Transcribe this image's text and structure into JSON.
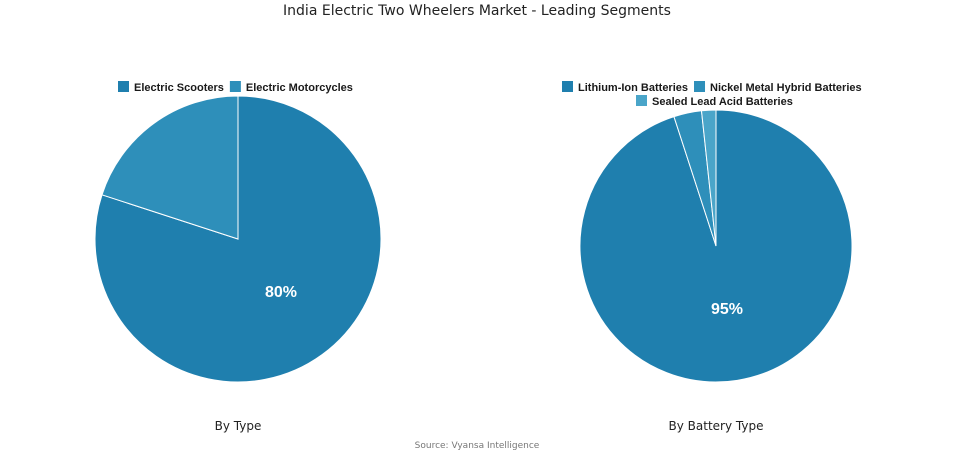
{
  "title": "India Electric Two Wheelers Market - Leading Segments",
  "source": "Source: Vyansa Intelligence",
  "chart_data": [
    {
      "type": "pie",
      "caption": "By Type",
      "legend_placement": "top",
      "slices": [
        {
          "label": "Electric Scooters",
          "value": 80,
          "color": "#1f7fae",
          "data_label": "80%"
        },
        {
          "label": "Electric Motorcycles",
          "value": 20,
          "color": "#2e8fba",
          "data_label": ""
        }
      ]
    },
    {
      "type": "pie",
      "caption": "By Battery Type",
      "legend_placement": "top",
      "slices": [
        {
          "label": "Lithium-Ion Batteries",
          "value": 95,
          "color": "#1f7fae",
          "data_label": "95%"
        },
        {
          "label": "Nickel Metal Hybrid Batteries",
          "value": 3.3,
          "color": "#2e8fba",
          "data_label": ""
        },
        {
          "label": "Sealed Lead Acid Batteries",
          "value": 1.7,
          "color": "#4aa5c9",
          "data_label": ""
        }
      ]
    }
  ]
}
